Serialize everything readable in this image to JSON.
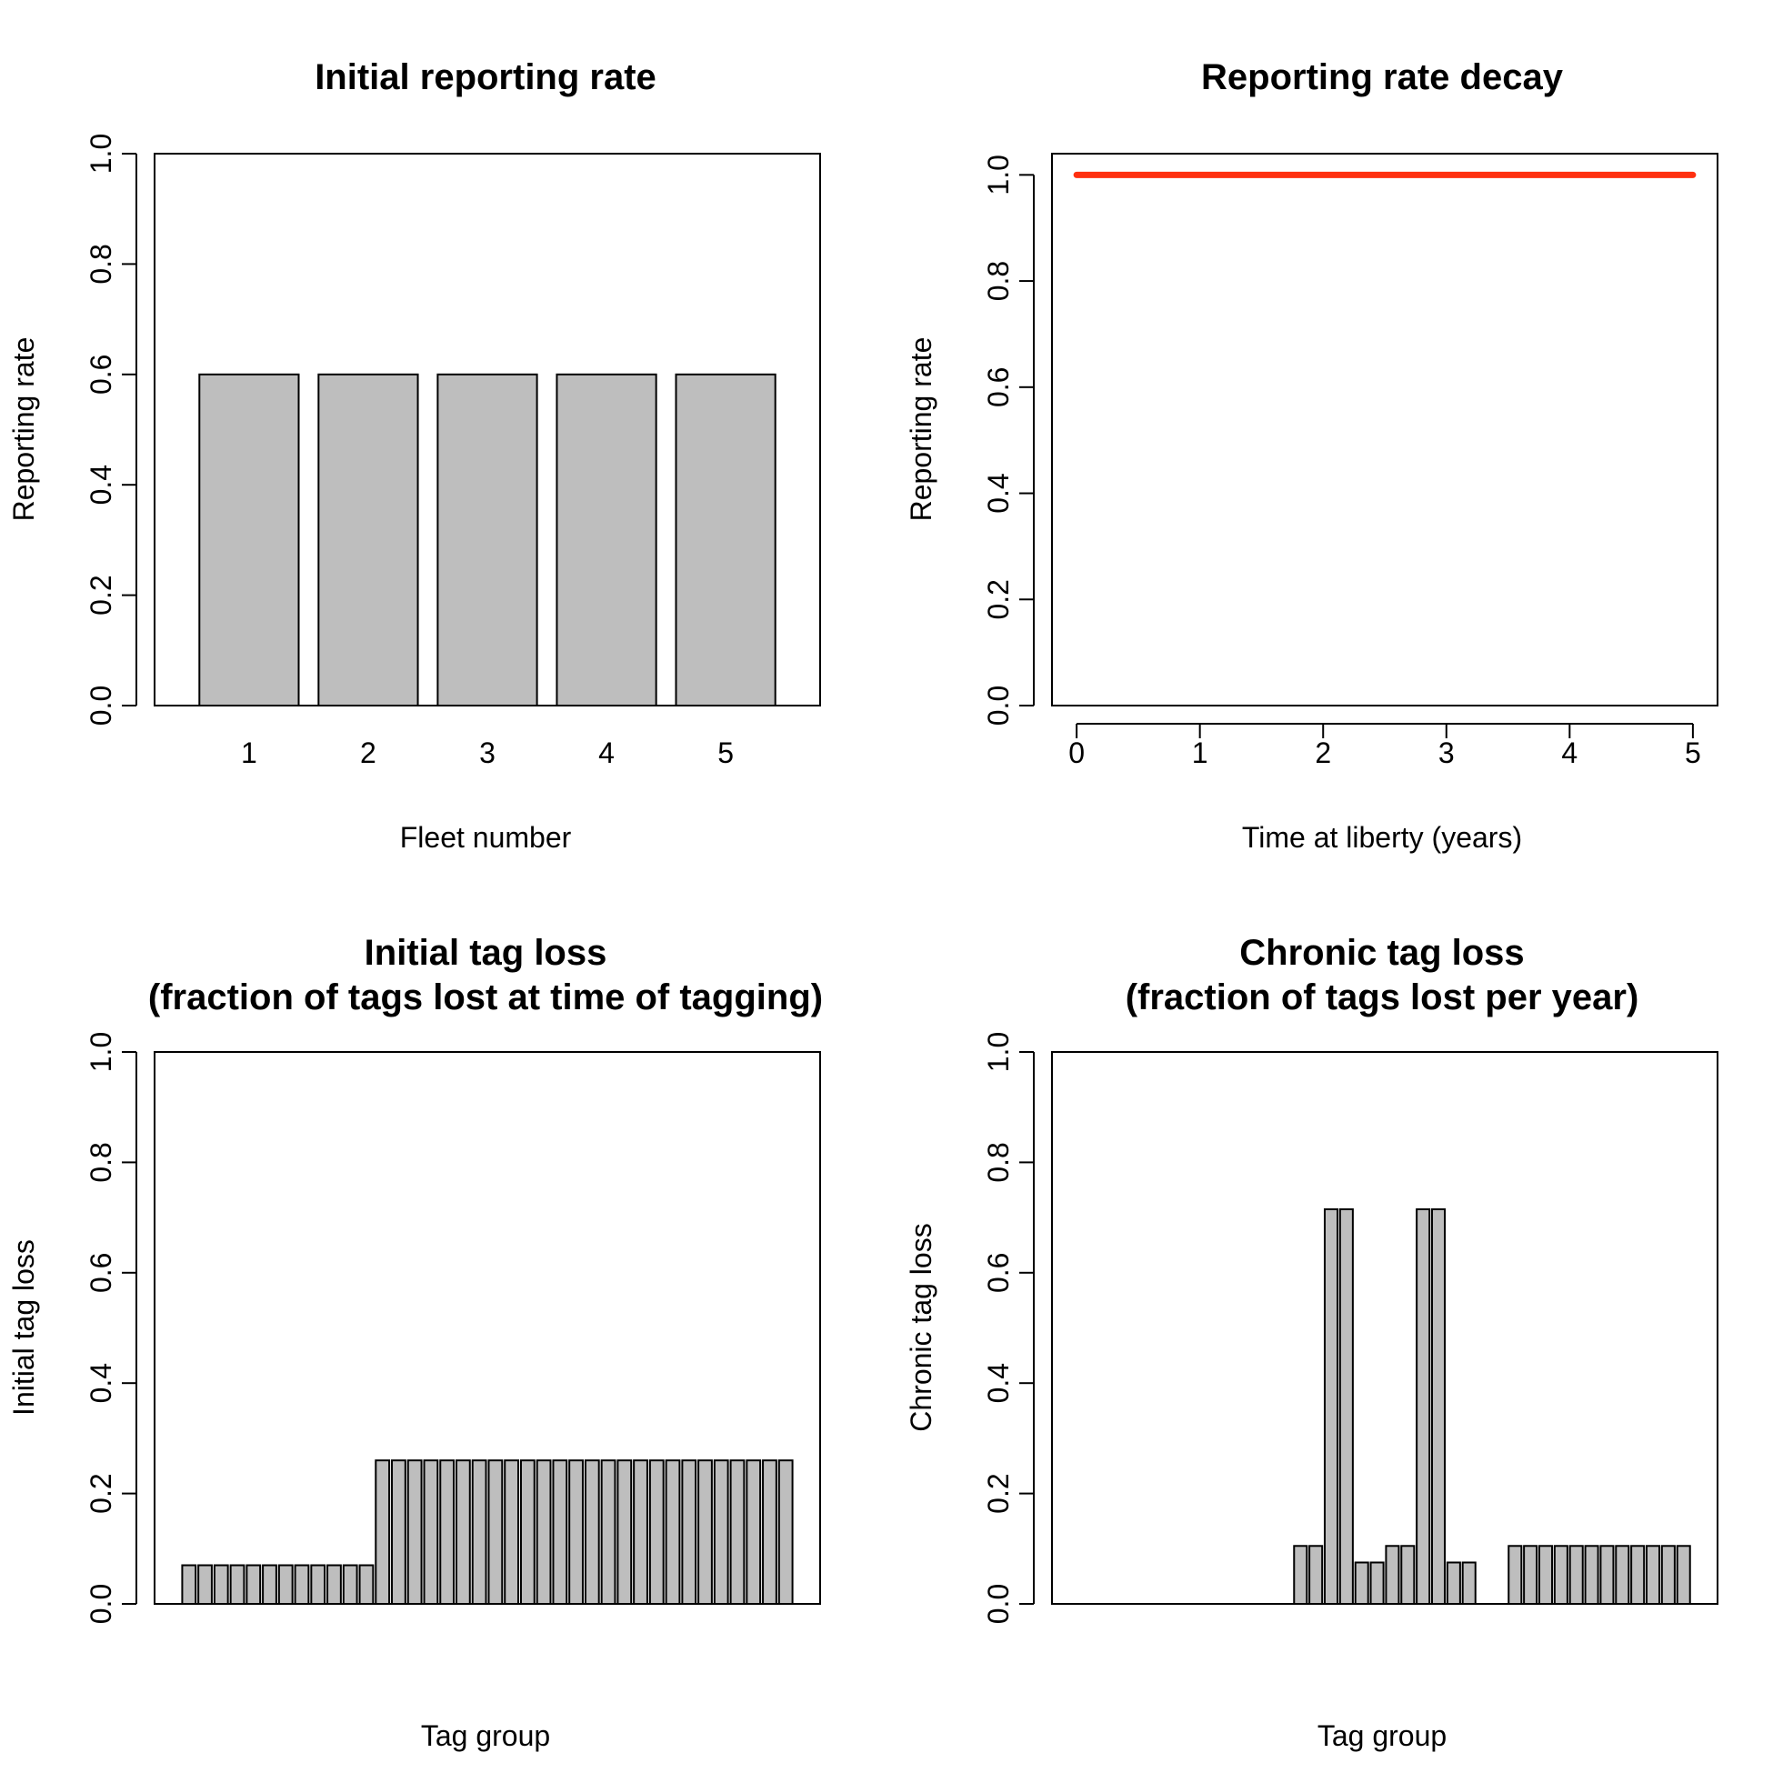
{
  "chart_data": [
    {
      "type": "bar",
      "title": "Initial reporting rate",
      "xlabel": "Fleet number",
      "ylabel": "Reporting rate",
      "categories": [
        "1",
        "2",
        "3",
        "4",
        "5"
      ],
      "values": [
        0.6,
        0.6,
        0.6,
        0.6,
        0.6
      ],
      "ylim": [
        0,
        1
      ],
      "yticks": [
        "0.0",
        "0.2",
        "0.4",
        "0.6",
        "0.8",
        "1.0"
      ],
      "bar_color": "#bebebe"
    },
    {
      "type": "line",
      "title": "Reporting rate decay",
      "xlabel": "Time at liberty (years)",
      "ylabel": "Reporting rate",
      "x": [
        0,
        5
      ],
      "y": [
        1.0,
        1.0
      ],
      "xlim": [
        -0.2,
        5.2
      ],
      "ylim": [
        0,
        1.04
      ],
      "xticks": [
        "0",
        "1",
        "2",
        "3",
        "4",
        "5"
      ],
      "yticks": [
        "0.0",
        "0.2",
        "0.4",
        "0.6",
        "0.8",
        "1.0"
      ],
      "line_color": "#ff3010"
    },
    {
      "type": "bar",
      "title": [
        "Initial tag loss",
        "(fraction of tags lost at time of tagging)"
      ],
      "xlabel": "Tag group",
      "ylabel": "Initial tag loss",
      "values": [
        0.07,
        0.07,
        0.07,
        0.07,
        0.07,
        0.07,
        0.07,
        0.07,
        0.07,
        0.07,
        0.07,
        0.07,
        0.26,
        0.26,
        0.26,
        0.26,
        0.26,
        0.26,
        0.26,
        0.26,
        0.26,
        0.26,
        0.26,
        0.26,
        0.26,
        0.26,
        0.26,
        0.26,
        0.26,
        0.26,
        0.26,
        0.26,
        0.26,
        0.26,
        0.26,
        0.26,
        0.26,
        0.26
      ],
      "ylim": [
        0,
        1
      ],
      "yticks": [
        "0.0",
        "0.2",
        "0.4",
        "0.6",
        "0.8",
        "1.0"
      ],
      "bar_color": "#bebebe"
    },
    {
      "type": "bar",
      "title": [
        "Chronic tag loss",
        "(fraction of tags lost per year)"
      ],
      "xlabel": "Tag group",
      "ylabel": "Chronic tag loss",
      "values": [
        0,
        0,
        0,
        0,
        0,
        0,
        0,
        0,
        0,
        0,
        0,
        0,
        0,
        0,
        0.105,
        0.105,
        0.715,
        0.715,
        0.075,
        0.075,
        0.105,
        0.105,
        0.715,
        0.715,
        0.075,
        0.075,
        0,
        0,
        0.105,
        0.105,
        0.105,
        0.105,
        0.105,
        0.105,
        0.105,
        0.105,
        0.105,
        0.105,
        0.105,
        0.105
      ],
      "ylim": [
        0,
        1
      ],
      "yticks": [
        "0.0",
        "0.2",
        "0.4",
        "0.6",
        "0.8",
        "1.0"
      ],
      "bar_color": "#bebebe"
    }
  ]
}
